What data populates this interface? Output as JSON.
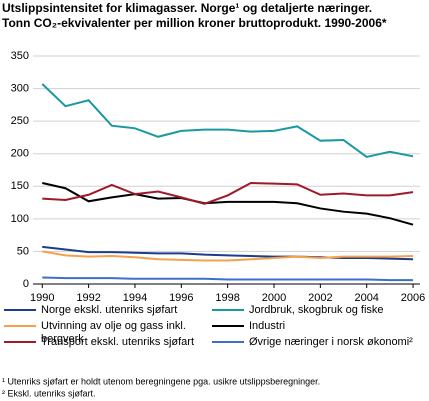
{
  "chart_data": {
    "type": "line",
    "title": "Utslippsintensitet for klimagasser. Norge¹ og detaljerte næringer.",
    "subtitle": "Tonn CO₂-ekvivalenter per million kroner bruttoprodukt. 1990-2006*",
    "x": [
      1990,
      1991,
      1992,
      1993,
      1994,
      1995,
      1996,
      1997,
      1998,
      1999,
      2000,
      2001,
      2002,
      2003,
      2004,
      2005,
      2006
    ],
    "xlim": [
      1989.6,
      2006.3
    ],
    "xticks": [
      1990,
      1992,
      1994,
      1996,
      1998,
      2000,
      2002,
      2004,
      2006
    ],
    "ylim": [
      0,
      350
    ],
    "yticks": [
      0,
      50,
      100,
      150,
      200,
      250,
      300,
      350
    ],
    "grid": true,
    "series": [
      {
        "name": "Norge ekskl. utenriks sjøfart",
        "color": "#1c3c8c",
        "values": [
          57,
          53,
          49,
          49,
          48,
          47,
          47,
          45,
          44,
          43,
          42,
          42,
          41,
          40,
          40,
          39,
          38
        ]
      },
      {
        "name": "Jordbruk, skogbruk og fiske",
        "color": "#1a9aa0",
        "values": [
          307,
          273,
          282,
          243,
          239,
          226,
          235,
          237,
          237,
          234,
          235,
          242,
          220,
          221,
          195,
          203,
          196
        ]
      },
      {
        "name": "Utvinning av olje og gass inkl. bergverk",
        "color": "#f5a04a",
        "values": [
          50,
          44,
          42,
          43,
          41,
          38,
          37,
          36,
          36,
          38,
          40,
          42,
          40,
          42,
          42,
          42,
          43
        ]
      },
      {
        "name": "Industri",
        "color": "#000000",
        "values": [
          155,
          147,
          127,
          133,
          138,
          131,
          132,
          124,
          126,
          126,
          126,
          124,
          116,
          111,
          108,
          101,
          91
        ]
      },
      {
        "name": "Transport ekskl. utenriks sjøfart",
        "color": "#a0182a",
        "values": [
          131,
          129,
          137,
          152,
          138,
          142,
          133,
          123,
          136,
          155,
          154,
          153,
          137,
          139,
          136,
          136,
          141
        ]
      },
      {
        "name": "Øvrige næringer i norsk økonomi²",
        "color": "#3d6fc9",
        "values": [
          10,
          9,
          9,
          9,
          8,
          8,
          8,
          8,
          7,
          7,
          7,
          7,
          7,
          7,
          7,
          6,
          6
        ]
      }
    ],
    "footnotes": [
      "¹ Utenriks sjøfart er holdt utenom beregningene pga. usikre utslippsberegninger.",
      "² Ekskl. utenriks sjøfart."
    ]
  }
}
